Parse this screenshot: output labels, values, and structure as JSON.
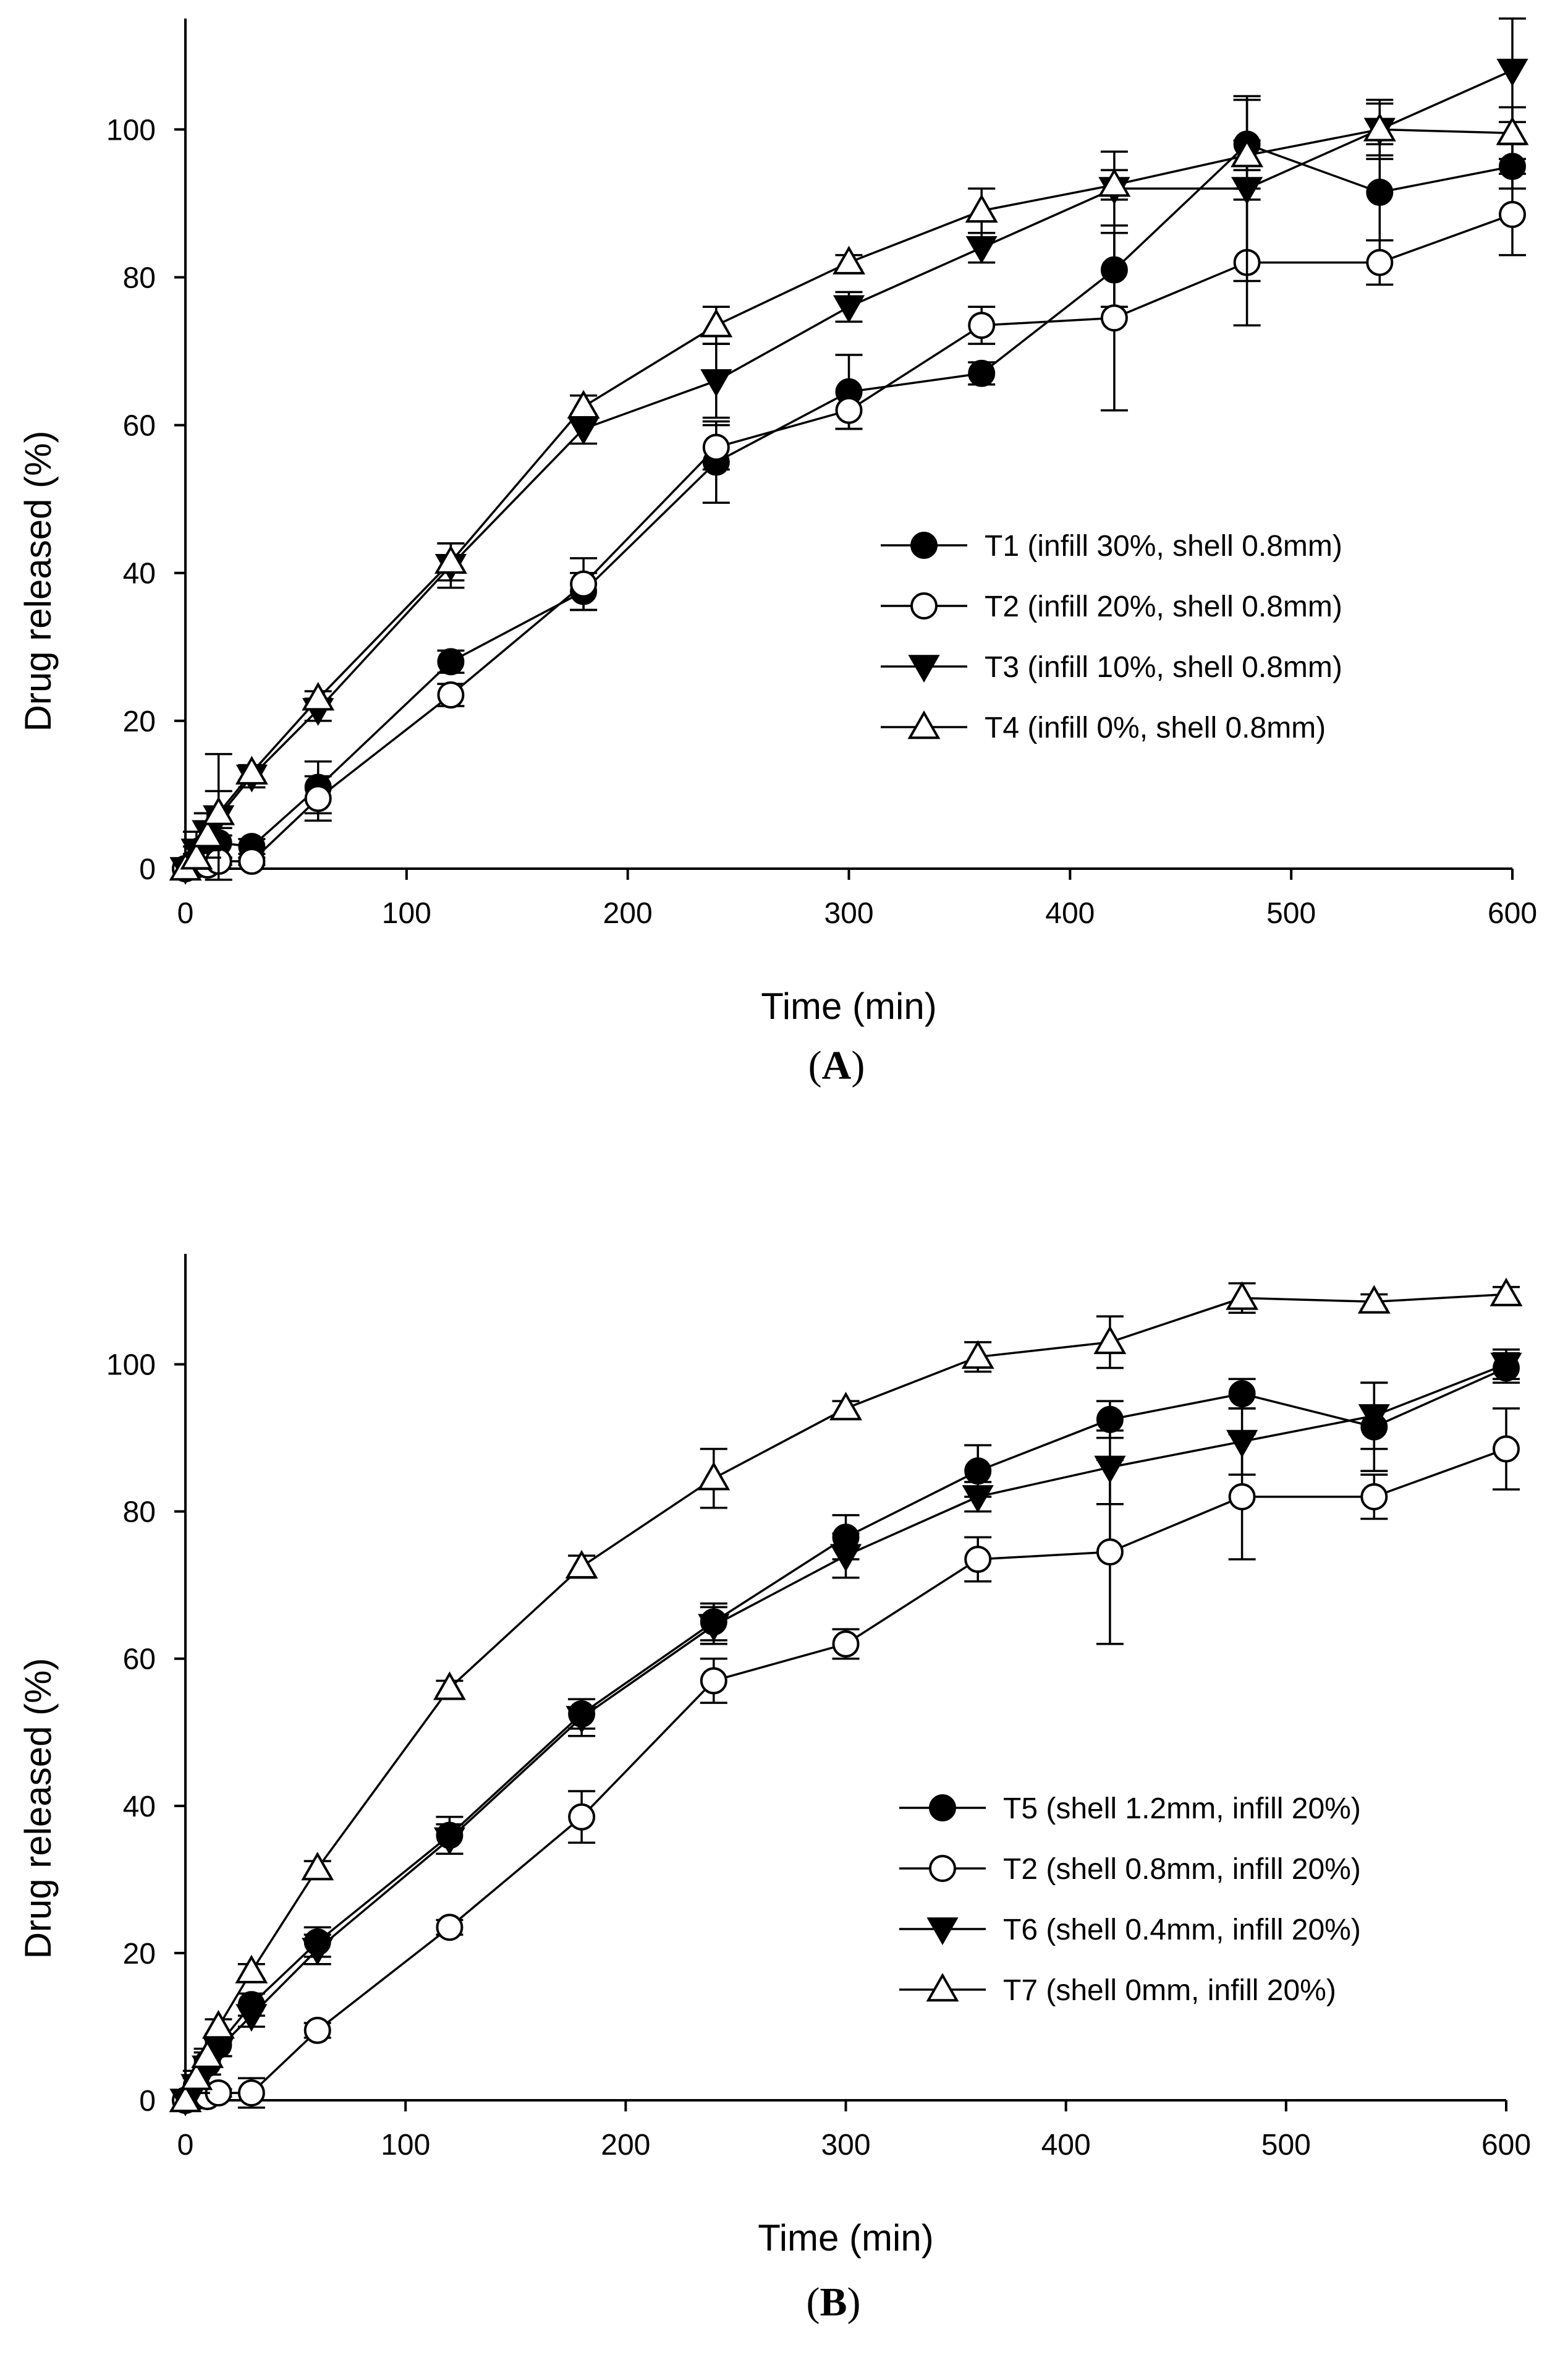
{
  "chart_data": [
    {
      "panel": "A",
      "type": "line",
      "xlabel": "Time (min)",
      "ylabel": "Drug released (%)",
      "xlim": [
        0,
        600
      ],
      "ylim": [
        0,
        115
      ],
      "xticks": [
        0,
        100,
        200,
        300,
        400,
        500,
        600
      ],
      "yticks": [
        0,
        20,
        40,
        60,
        80,
        100
      ],
      "x": [
        0,
        5,
        10,
        15,
        30,
        60,
        120,
        180,
        240,
        300,
        360,
        420,
        480,
        540,
        600
      ],
      "legend_position": "center-right",
      "series": [
        {
          "name": "T1 (infill 30%, shell 0.8mm)",
          "marker": "circle-filled",
          "values": [
            0,
            1,
            2,
            3.5,
            3,
            11,
            28,
            37.5,
            55,
            64.5,
            67,
            81,
            98,
            91.5,
            95
          ],
          "errors": [
            0,
            1,
            2,
            2,
            1,
            3.5,
            1.5,
            2.5,
            5.5,
            5,
            1.5,
            5,
            6,
            6.5,
            3
          ]
        },
        {
          "name": "T2 (infill 20%, shell 0.8mm)",
          "marker": "circle-open",
          "values": [
            0,
            0.5,
            0.5,
            1,
            1,
            9.5,
            23.5,
            38.5,
            57,
            62,
            73.5,
            74.5,
            82,
            82,
            88.5
          ],
          "errors": [
            0,
            0.5,
            0.5,
            0.5,
            0.5,
            3,
            1.5,
            3.5,
            3,
            2.5,
            2.5,
            12.5,
            8.5,
            3,
            5.5
          ]
        },
        {
          "name": "T3 (infill 10%, shell 0.8mm)",
          "marker": "triangle-down-filled",
          "values": [
            0,
            2.5,
            5,
            7,
            12.5,
            21.5,
            41,
            59.5,
            66,
            76,
            84,
            92,
            92,
            100,
            108
          ],
          "errors": [
            0,
            2.5,
            2.5,
            8.5,
            1.5,
            1.5,
            3,
            2,
            5,
            2,
            2,
            5,
            12.5,
            3.5,
            7
          ]
        },
        {
          "name": "T4 (infill 0%, shell 0.8mm)",
          "marker": "triangle-up-open",
          "values": [
            0,
            1.5,
            4.5,
            7.5,
            13,
            23,
            41.5,
            62.5,
            73.5,
            82,
            89,
            92.5,
            96.5,
            100,
            99.5
          ],
          "errors": [
            0,
            1.5,
            3,
            3,
            1,
            1,
            2.5,
            1.5,
            2.5,
            1,
            3,
            2,
            2,
            4,
            3.5
          ]
        }
      ]
    },
    {
      "panel": "B",
      "type": "line",
      "xlabel": "Time (min)",
      "ylabel": "Drug released (%)",
      "xlim": [
        0,
        600
      ],
      "ylim": [
        0,
        115
      ],
      "xticks": [
        0,
        100,
        200,
        300,
        400,
        500,
        600
      ],
      "yticks": [
        0,
        20,
        40,
        60,
        80,
        100
      ],
      "x": [
        0,
        5,
        10,
        15,
        30,
        60,
        120,
        180,
        240,
        300,
        360,
        420,
        480,
        540,
        600
      ],
      "legend_position": "bottom-right",
      "series": [
        {
          "name": "T5 (shell 1.2mm, infill 20%)",
          "marker": "circle-filled",
          "values": [
            0,
            2,
            5,
            7.5,
            13,
            21.5,
            36,
            52.5,
            65,
            76.5,
            85.5,
            92.5,
            96,
            91.5,
            99.5
          ],
          "errors": [
            0,
            1,
            1.5,
            1.5,
            1.5,
            2,
            2.5,
            2,
            2.5,
            3,
            3.5,
            2.5,
            2,
            6,
            2
          ]
        },
        {
          "name": "T2 (shell 0.8mm, infill 20%)",
          "marker": "circle-open",
          "values": [
            0,
            0.5,
            0.5,
            1,
            1,
            9.5,
            23.5,
            38.5,
            57,
            62,
            73.5,
            74.5,
            82,
            82,
            88.5
          ],
          "errors": [
            0,
            0.5,
            0.5,
            0.5,
            2,
            1,
            1,
            3.5,
            3,
            2,
            3,
            12.5,
            8.5,
            3,
            5.5
          ]
        },
        {
          "name": "T6 (shell 0.4mm, infill 20%)",
          "marker": "triangle-down-filled",
          "values": [
            0,
            2,
            4.5,
            7,
            11.5,
            20.5,
            35.5,
            52,
            64.5,
            74,
            82,
            86,
            89.5,
            93,
            100
          ],
          "errors": [
            0,
            1,
            1,
            1,
            1.5,
            2,
            2,
            2.5,
            2.5,
            3,
            2,
            5,
            4.5,
            4.5,
            2
          ]
        },
        {
          "name": "T7 (shell 0mm, infill 20%)",
          "marker": "triangle-up-open",
          "values": [
            0,
            3,
            6,
            10,
            17.5,
            31.5,
            56,
            72.5,
            84.5,
            94,
            101,
            103,
            109,
            108.5,
            109.5
          ],
          "errors": [
            0,
            1,
            1,
            1,
            1,
            1,
            1,
            1.5,
            4,
            1,
            2,
            3.5,
            2,
            1,
            1
          ]
        }
      ]
    }
  ]
}
